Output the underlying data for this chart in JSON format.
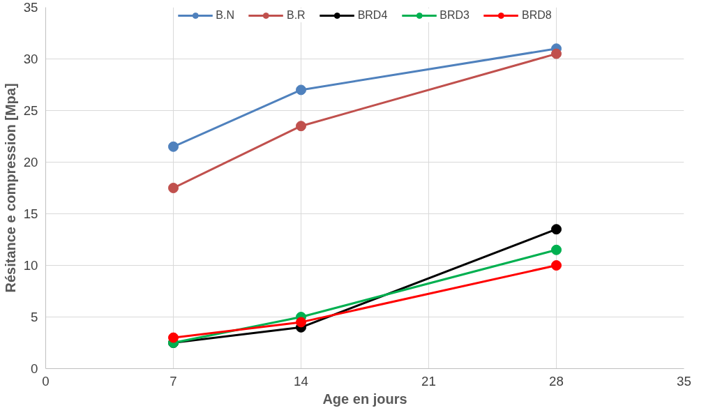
{
  "chart_data": {
    "type": "line",
    "xlabel": "Age en jours",
    "ylabel": "Résitance e compression [Mpa]",
    "x": [
      7,
      14,
      28
    ],
    "series": [
      {
        "name": "B.N",
        "color": "#4f81bd",
        "values": [
          21.5,
          27,
          31
        ]
      },
      {
        "name": "B.R",
        "color": "#c0504d",
        "values": [
          17.5,
          23.5,
          30.5
        ]
      },
      {
        "name": "BRD4",
        "color": "#000000",
        "values": [
          2.5,
          4,
          13.5
        ]
      },
      {
        "name": "BRD3",
        "color": "#00b050",
        "values": [
          2.5,
          5,
          11.5
        ]
      },
      {
        "name": "BRD8",
        "color": "#ff0000",
        "values": [
          3,
          4.5,
          10
        ]
      }
    ],
    "xlim": [
      0,
      35
    ],
    "xticks": [
      0,
      7,
      14,
      21,
      28,
      35
    ],
    "ylim": [
      0,
      35
    ],
    "yticks": [
      0,
      5,
      10,
      15,
      20,
      25,
      30,
      35
    ],
    "grid": true,
    "legend": "top",
    "marker": "circle",
    "line_style": "solid"
  }
}
